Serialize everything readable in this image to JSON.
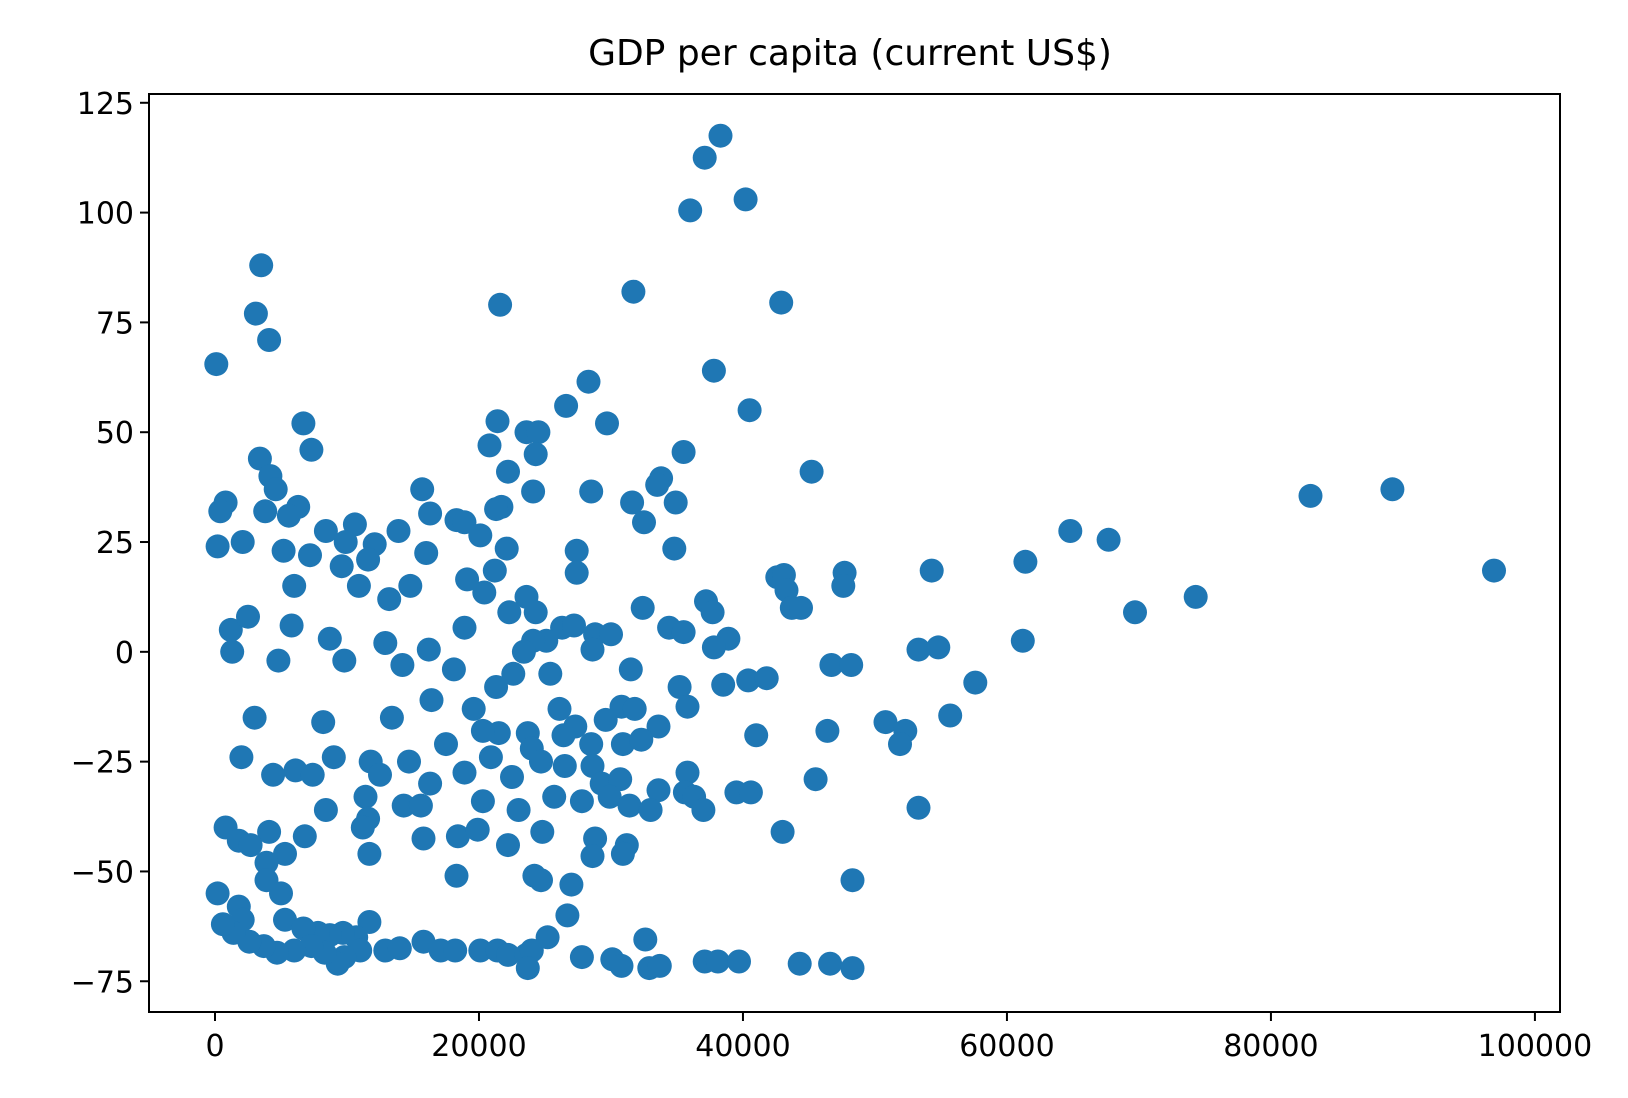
{
  "chart_data": {
    "type": "scatter",
    "title": "GDP per capita (current US$)",
    "xlabel": "",
    "ylabel": "",
    "xlim": [
      -5000,
      101900
    ],
    "ylim": [
      -82,
      127
    ],
    "xticks": [
      0,
      20000,
      40000,
      60000,
      80000,
      100000
    ],
    "xtick_labels": [
      "0",
      "20000",
      "40000",
      "60000",
      "80000",
      "100000"
    ],
    "yticks": [
      -75,
      -50,
      -25,
      0,
      25,
      50,
      75,
      100,
      125
    ],
    "ytick_labels": [
      "−75",
      "−50",
      "−25",
      "0",
      "25",
      "50",
      "75",
      "100",
      "125"
    ],
    "grid": false,
    "legend": "none",
    "marker_color": "#1f77b4",
    "points": [
      [
        38300,
        117.5
      ],
      [
        37100,
        112.5
      ],
      [
        40200,
        103
      ],
      [
        36000,
        100.5
      ],
      [
        31700,
        82
      ],
      [
        21600,
        79
      ],
      [
        42900,
        79.5
      ],
      [
        3500,
        88
      ],
      [
        3100,
        77
      ],
      [
        4100,
        71
      ],
      [
        100,
        65.5
      ],
      [
        37800,
        64
      ],
      [
        28300,
        61.5
      ],
      [
        26600,
        56
      ],
      [
        40500,
        55
      ],
      [
        29700,
        52
      ],
      [
        21400,
        52.5
      ],
      [
        6700,
        52
      ],
      [
        23600,
        50
      ],
      [
        24500,
        50
      ],
      [
        20800,
        47
      ],
      [
        24300,
        45
      ],
      [
        7300,
        46
      ],
      [
        35500,
        45.5
      ],
      [
        3400,
        44
      ],
      [
        22200,
        41
      ],
      [
        45200,
        41
      ],
      [
        33800,
        39.5
      ],
      [
        4200,
        40
      ],
      [
        4600,
        37
      ],
      [
        15700,
        37
      ],
      [
        24100,
        36.5
      ],
      [
        28500,
        36.5
      ],
      [
        83000,
        35.5
      ],
      [
        89200,
        37
      ],
      [
        96900,
        18.5
      ],
      [
        33500,
        38
      ],
      [
        31600,
        34
      ],
      [
        34900,
        34
      ],
      [
        21700,
        33
      ],
      [
        21300,
        32.5
      ],
      [
        800,
        34
      ],
      [
        400,
        32
      ],
      [
        6300,
        33
      ],
      [
        3800,
        32
      ],
      [
        5600,
        31
      ],
      [
        16300,
        31.5
      ],
      [
        18300,
        30
      ],
      [
        18900,
        29.5
      ],
      [
        32500,
        29.5
      ],
      [
        64800,
        27.5
      ],
      [
        67700,
        25.5
      ],
      [
        10600,
        29
      ],
      [
        8400,
        27.5
      ],
      [
        13900,
        27.5
      ],
      [
        20100,
        26.5
      ],
      [
        9900,
        25
      ],
      [
        12100,
        24.5
      ],
      [
        2100,
        25
      ],
      [
        200,
        24
      ],
      [
        22100,
        23.5
      ],
      [
        34800,
        23.5
      ],
      [
        27400,
        23
      ],
      [
        5200,
        23
      ],
      [
        16000,
        22.5
      ],
      [
        7200,
        22
      ],
      [
        61400,
        20.5
      ],
      [
        11600,
        21
      ],
      [
        9600,
        19.5
      ],
      [
        21200,
        18.5
      ],
      [
        27400,
        18
      ],
      [
        54300,
        18.5
      ],
      [
        47700,
        18
      ],
      [
        19100,
        16.5
      ],
      [
        42600,
        17
      ],
      [
        43100,
        17.5
      ],
      [
        47600,
        15
      ],
      [
        43300,
        14
      ],
      [
        6000,
        15
      ],
      [
        10900,
        15
      ],
      [
        14800,
        15
      ],
      [
        20400,
        13.5
      ],
      [
        13200,
        12
      ],
      [
        23600,
        12.5
      ],
      [
        37200,
        11.5
      ],
      [
        74300,
        12.5
      ],
      [
        32400,
        10
      ],
      [
        43700,
        10
      ],
      [
        44400,
        10
      ],
      [
        22300,
        9
      ],
      [
        37700,
        9
      ],
      [
        69700,
        9
      ],
      [
        24300,
        9
      ],
      [
        26300,
        5.5
      ],
      [
        27200,
        6
      ],
      [
        18900,
        5.5
      ],
      [
        34400,
        5.5
      ],
      [
        35500,
        4.5
      ],
      [
        28800,
        4
      ],
      [
        30000,
        4
      ],
      [
        1200,
        5
      ],
      [
        2500,
        8
      ],
      [
        5800,
        6
      ],
      [
        8700,
        3
      ],
      [
        12900,
        2
      ],
      [
        16200,
        0.5
      ],
      [
        25100,
        2.5
      ],
      [
        24100,
        2.5
      ],
      [
        38900,
        3
      ],
      [
        37800,
        1
      ],
      [
        28600,
        0.5
      ],
      [
        23400,
        0
      ],
      [
        61200,
        2.5
      ],
      [
        53300,
        0.5
      ],
      [
        54800,
        1
      ],
      [
        1300,
        0
      ],
      [
        4800,
        -2
      ],
      [
        9800,
        -2
      ],
      [
        14200,
        -3
      ],
      [
        18100,
        -4
      ],
      [
        22600,
        -5
      ],
      [
        25400,
        -5
      ],
      [
        31500,
        -4
      ],
      [
        46700,
        -3
      ],
      [
        48200,
        -3
      ],
      [
        40400,
        -6.5
      ],
      [
        41800,
        -6
      ],
      [
        57600,
        -7
      ],
      [
        38500,
        -7.5
      ],
      [
        35200,
        -8
      ],
      [
        21300,
        -8
      ],
      [
        16400,
        -11
      ],
      [
        19600,
        -13
      ],
      [
        26100,
        -13
      ],
      [
        30800,
        -12.5
      ],
      [
        31800,
        -13
      ],
      [
        35800,
        -12.5
      ],
      [
        3000,
        -15
      ],
      [
        8200,
        -16
      ],
      [
        13400,
        -15
      ],
      [
        29600,
        -15.5
      ],
      [
        50800,
        -16
      ],
      [
        52300,
        -18
      ],
      [
        55700,
        -14.5
      ],
      [
        27300,
        -17
      ],
      [
        33600,
        -17
      ],
      [
        41000,
        -19
      ],
      [
        46400,
        -18
      ],
      [
        23700,
        -18.5
      ],
      [
        21500,
        -18.5
      ],
      [
        26400,
        -19
      ],
      [
        20300,
        -18
      ],
      [
        51900,
        -21
      ],
      [
        28500,
        -21
      ],
      [
        30900,
        -21
      ],
      [
        32300,
        -20
      ],
      [
        24000,
        -22
      ],
      [
        17500,
        -21
      ],
      [
        9000,
        -24
      ],
      [
        20900,
        -24
      ],
      [
        11800,
        -25
      ],
      [
        2000,
        -24
      ],
      [
        6100,
        -27
      ],
      [
        4400,
        -28
      ],
      [
        14700,
        -25
      ],
      [
        28600,
        -26
      ],
      [
        26500,
        -26
      ],
      [
        24700,
        -25
      ],
      [
        35800,
        -27.5
      ],
      [
        45500,
        -29
      ],
      [
        22500,
        -28.5
      ],
      [
        18900,
        -27.5
      ],
      [
        16300,
        -30
      ],
      [
        12500,
        -28
      ],
      [
        29300,
        -30
      ],
      [
        30700,
        -29
      ],
      [
        33600,
        -31.5
      ],
      [
        35600,
        -32
      ],
      [
        39500,
        -32
      ],
      [
        40600,
        -32
      ],
      [
        36300,
        -33
      ],
      [
        25700,
        -33
      ],
      [
        27800,
        -34
      ],
      [
        29900,
        -33
      ],
      [
        20300,
        -34
      ],
      [
        11400,
        -33
      ],
      [
        8400,
        -36
      ],
      [
        7400,
        -28
      ],
      [
        14300,
        -35
      ],
      [
        15600,
        -35
      ],
      [
        31400,
        -35
      ],
      [
        33000,
        -36
      ],
      [
        37000,
        -36
      ],
      [
        23000,
        -36
      ],
      [
        53300,
        -35.5
      ],
      [
        11600,
        -38
      ],
      [
        11200,
        -40
      ],
      [
        4100,
        -41
      ],
      [
        6800,
        -42
      ],
      [
        15800,
        -42.5
      ],
      [
        18400,
        -42
      ],
      [
        19900,
        -40.5
      ],
      [
        22200,
        -44
      ],
      [
        24800,
        -41
      ],
      [
        28800,
        -42.5
      ],
      [
        31200,
        -44
      ],
      [
        30900,
        -46
      ],
      [
        28600,
        -46.5
      ],
      [
        24200,
        -51
      ],
      [
        18300,
        -51
      ],
      [
        11700,
        -46
      ],
      [
        5300,
        -46
      ],
      [
        3900,
        -48
      ],
      [
        24700,
        -52
      ],
      [
        27000,
        -53
      ],
      [
        43000,
        -41
      ],
      [
        48300,
        -52
      ],
      [
        200,
        -55
      ],
      [
        1800,
        -58
      ],
      [
        2100,
        -61
      ],
      [
        5300,
        -61
      ],
      [
        26700,
        -60
      ],
      [
        25200,
        -65
      ],
      [
        32600,
        -65.5
      ],
      [
        15800,
        -66
      ],
      [
        17100,
        -68
      ],
      [
        18200,
        -68
      ],
      [
        20100,
        -68
      ],
      [
        21400,
        -68
      ],
      [
        22200,
        -69
      ],
      [
        23600,
        -69
      ],
      [
        24000,
        -68
      ],
      [
        23700,
        -72
      ],
      [
        27800,
        -69.5
      ],
      [
        30100,
        -70
      ],
      [
        30800,
        -71.5
      ],
      [
        32900,
        -72
      ],
      [
        33700,
        -71.5
      ],
      [
        37100,
        -70.5
      ],
      [
        38100,
        -70.5
      ],
      [
        39700,
        -70.5
      ],
      [
        44300,
        -71
      ],
      [
        46600,
        -71
      ],
      [
        48300,
        -72
      ],
      [
        11700,
        -61.5
      ],
      [
        10700,
        -65
      ],
      [
        9700,
        -64
      ],
      [
        8700,
        -64.5
      ],
      [
        7800,
        -64
      ],
      [
        6700,
        -63
      ],
      [
        11000,
        -68
      ],
      [
        12900,
        -68
      ],
      [
        14000,
        -67.5
      ],
      [
        9800,
        -69.5
      ],
      [
        9300,
        -71
      ],
      [
        8300,
        -68.5
      ],
      [
        7300,
        -67
      ],
      [
        6000,
        -68
      ],
      [
        4700,
        -68.5
      ],
      [
        3700,
        -67
      ],
      [
        2600,
        -66
      ],
      [
        1400,
        -64
      ],
      [
        600,
        -62
      ],
      [
        800,
        -40
      ],
      [
        1800,
        -43
      ],
      [
        2700,
        -44
      ],
      [
        3900,
        -52
      ],
      [
        5000,
        -55
      ]
    ]
  }
}
